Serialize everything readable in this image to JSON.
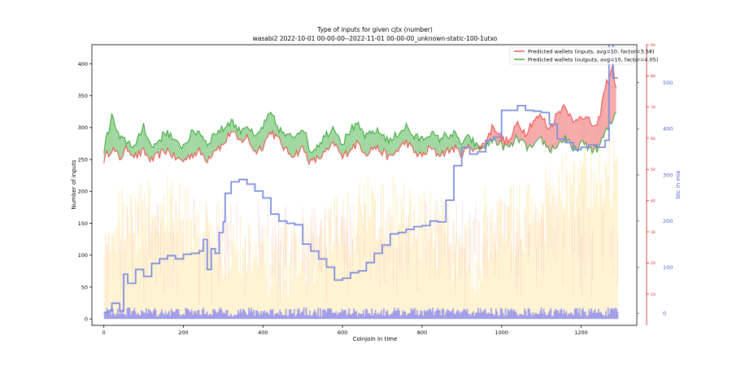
{
  "chart_data": {
    "type": "line",
    "title": "Type of inputs for given cjtx (number)",
    "subtitle": "wasabi2 2022-10-01 00-00-00--2022-11-01 00-00-00_unknown-static-100-1utxo",
    "xlabel": "Coinjoin in time",
    "ylabel": "Number of inputs",
    "ylabel_right": "btc in mix",
    "xlim": [
      -30,
      1340
    ],
    "ylim": [
      -10,
      430
    ],
    "ylim_right": [
      -26,
      582
    ],
    "ylim_right_red": [
      0,
      90
    ],
    "x_ticks": [
      0,
      200,
      400,
      600,
      800,
      1000,
      1200
    ],
    "y_ticks": [
      0,
      50,
      100,
      150,
      200,
      250,
      300,
      350,
      400
    ],
    "y_ticks_right": [
      0,
      100,
      200,
      300,
      400,
      500
    ],
    "y_ticks_right_red": [
      10,
      20,
      30,
      40,
      50,
      60,
      70,
      80,
      90
    ],
    "grid": false,
    "legend_position": "top-right",
    "colors": {
      "inputs": "#ee5555",
      "outputs": "#44aa44",
      "btc": "#7f8fdd",
      "right_red_axis": "#d62728",
      "right_blue_axis": "#4a5fc9",
      "fill_inputs_above": "#f28b8b",
      "fill_outputs_above": "#7fc97f",
      "bg_bars": "#ffe08a",
      "bg_bars_pink": "#f7c4c4",
      "bottom_bars": "#8888ee"
    },
    "series": [
      {
        "name": "Predicted wallets (inputs, avg=10, factor=3.58)",
        "axis": "left",
        "x": [
          0,
          20,
          40,
          60,
          80,
          100,
          120,
          140,
          160,
          180,
          200,
          220,
          240,
          260,
          280,
          300,
          320,
          340,
          360,
          380,
          400,
          420,
          440,
          460,
          480,
          500,
          520,
          540,
          560,
          580,
          600,
          620,
          640,
          660,
          680,
          700,
          720,
          740,
          760,
          780,
          800,
          820,
          840,
          860,
          880,
          900,
          920,
          940,
          960,
          980,
          1000,
          1020,
          1040,
          1060,
          1080,
          1100,
          1120,
          1140,
          1160,
          1180,
          1200,
          1220,
          1240,
          1260,
          1280,
          1290
        ],
        "values": [
          250,
          268,
          252,
          268,
          255,
          262,
          248,
          258,
          265,
          252,
          248,
          258,
          262,
          250,
          268,
          272,
          295,
          278,
          285,
          262,
          272,
          295,
          280,
          262,
          258,
          268,
          245,
          252,
          262,
          275,
          252,
          268,
          275,
          260,
          270,
          262,
          252,
          266,
          278,
          262,
          255,
          268,
          258,
          262,
          268,
          258,
          272,
          265,
          278,
          305,
          282,
          278,
          308,
          292,
          312,
          318,
          298,
          322,
          338,
          305,
          322,
          310,
          298,
          362,
          398,
          345
        ]
      },
      {
        "name": "Predicted wallets (outputs, avg=10, factor=4.05)",
        "axis": "left",
        "x": [
          0,
          20,
          40,
          60,
          80,
          100,
          120,
          140,
          160,
          180,
          200,
          220,
          240,
          260,
          280,
          300,
          320,
          340,
          360,
          380,
          400,
          420,
          440,
          460,
          480,
          500,
          520,
          540,
          560,
          580,
          600,
          620,
          640,
          660,
          680,
          700,
          720,
          740,
          760,
          780,
          800,
          820,
          840,
          860,
          880,
          900,
          920,
          940,
          960,
          980,
          1000,
          1020,
          1040,
          1060,
          1080,
          1100,
          1120,
          1140,
          1160,
          1180,
          1200,
          1220,
          1240,
          1260,
          1280,
          1290
        ],
        "values": [
          265,
          318,
          282,
          278,
          270,
          305,
          268,
          282,
          295,
          275,
          272,
          290,
          295,
          275,
          292,
          298,
          312,
          295,
          305,
          282,
          302,
          322,
          298,
          285,
          288,
          302,
          262,
          275,
          290,
          302,
          275,
          298,
          302,
          285,
          295,
          290,
          278,
          292,
          302,
          285,
          282,
          292,
          282,
          288,
          290,
          275,
          285,
          268,
          270,
          282,
          272,
          268,
          285,
          270,
          268,
          282,
          265,
          272,
          285,
          262,
          275,
          268,
          265,
          290,
          312,
          332
        ]
      },
      {
        "name": "btc in mix",
        "axis": "right",
        "x": [
          0,
          10,
          20,
          40,
          50,
          60,
          80,
          100,
          120,
          140,
          160,
          180,
          200,
          220,
          240,
          250,
          260,
          270,
          280,
          290,
          300,
          305,
          320,
          340,
          360,
          380,
          400,
          420,
          440,
          460,
          480,
          500,
          520,
          540,
          560,
          580,
          600,
          620,
          640,
          660,
          680,
          700,
          720,
          740,
          760,
          780,
          800,
          820,
          840,
          860,
          880,
          900,
          920,
          940,
          960,
          980,
          1000,
          1020,
          1040,
          1060,
          1080,
          1100,
          1120,
          1140,
          1160,
          1180,
          1200,
          1220,
          1240,
          1260,
          1270,
          1280,
          1290
        ],
        "values": [
          2,
          5,
          22,
          5,
          85,
          65,
          95,
          80,
          108,
          118,
          125,
          118,
          128,
          130,
          135,
          160,
          95,
          140,
          130,
          175,
          198,
          260,
          285,
          290,
          280,
          265,
          250,
          215,
          200,
          195,
          192,
          150,
          135,
          118,
          100,
          72,
          76,
          88,
          92,
          110,
          130,
          148,
          172,
          175,
          182,
          188,
          190,
          200,
          198,
          245,
          320,
          360,
          345,
          350,
          375,
          382,
          440,
          440,
          450,
          440,
          438,
          435,
          410,
          378,
          370,
          355,
          360,
          365,
          360,
          375,
          595,
          510,
          508
        ]
      }
    ]
  },
  "legend": {
    "inputs_label": "Predicted wallets (inputs, avg=10, factor=3.58)",
    "outputs_label": "Predicted wallets (outputs, avg=10, factor=4.05)"
  }
}
